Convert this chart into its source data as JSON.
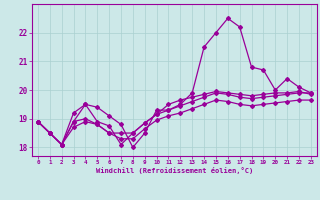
{
  "x_values": [
    0,
    1,
    2,
    3,
    4,
    5,
    6,
    7,
    8,
    9,
    10,
    11,
    12,
    13,
    14,
    15,
    16,
    17,
    18,
    19,
    20,
    21,
    22,
    23
  ],
  "line1": [
    18.9,
    18.5,
    18.1,
    19.2,
    19.5,
    19.4,
    19.1,
    18.8,
    18.0,
    18.5,
    19.3,
    19.3,
    19.5,
    19.9,
    21.5,
    22.0,
    22.5,
    22.2,
    20.8,
    20.7,
    20.0,
    20.4,
    20.1,
    19.9
  ],
  "line2": [
    18.9,
    18.5,
    18.1,
    18.9,
    19.5,
    18.9,
    18.75,
    18.1,
    18.5,
    18.85,
    19.15,
    19.5,
    19.65,
    19.75,
    19.85,
    19.95,
    19.9,
    19.85,
    19.8,
    19.85,
    19.9,
    19.9,
    19.95,
    19.85
  ],
  "line3": [
    18.9,
    18.5,
    18.1,
    18.9,
    19.0,
    18.8,
    18.5,
    18.5,
    18.5,
    18.85,
    19.15,
    19.3,
    19.45,
    19.6,
    19.75,
    19.9,
    19.85,
    19.75,
    19.7,
    19.75,
    19.8,
    19.85,
    19.9,
    19.9
  ],
  "line4": [
    18.9,
    18.5,
    18.1,
    18.7,
    18.9,
    18.8,
    18.5,
    18.3,
    18.3,
    18.65,
    18.95,
    19.1,
    19.2,
    19.35,
    19.5,
    19.65,
    19.6,
    19.5,
    19.45,
    19.5,
    19.55,
    19.6,
    19.65,
    19.65
  ],
  "line_color": "#990099",
  "background_color": "#cce8e8",
  "grid_color": "#aad0d0",
  "ylim": [
    17.7,
    23.0
  ],
  "yticks": [
    18,
    19,
    20,
    21,
    22
  ],
  "xticks": [
    0,
    1,
    2,
    3,
    4,
    5,
    6,
    7,
    8,
    9,
    10,
    11,
    12,
    13,
    14,
    15,
    16,
    17,
    18,
    19,
    20,
    21,
    22,
    23
  ],
  "xlabel": "Windchill (Refroidissement éolien,°C)",
  "marker": "D",
  "marker_size": 2.0,
  "linewidth": 0.9
}
